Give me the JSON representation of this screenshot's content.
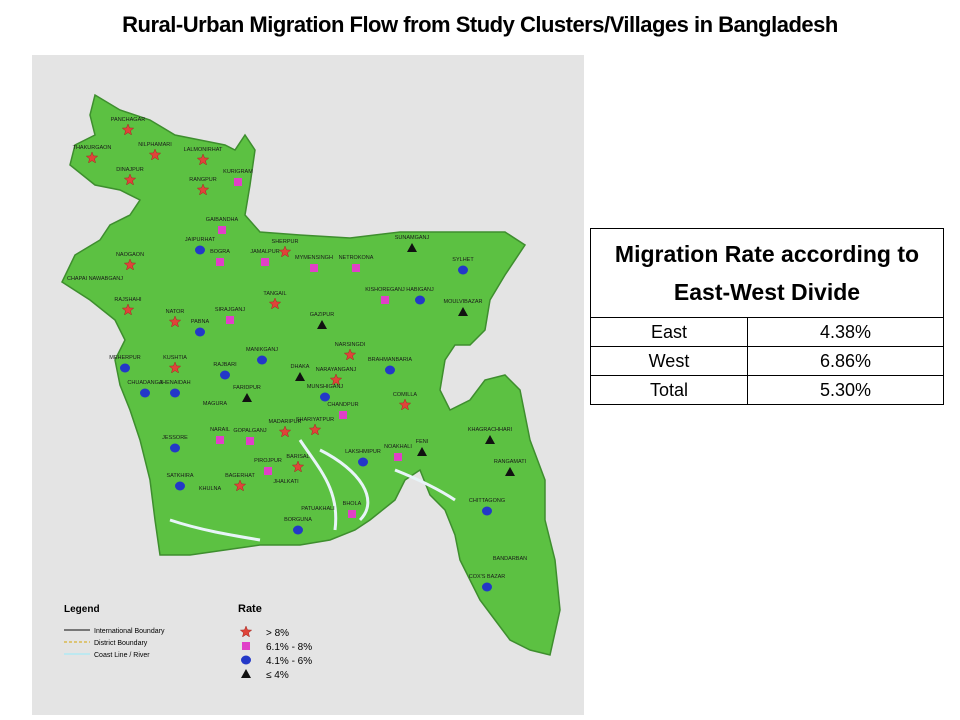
{
  "title": "Rural-Urban Migration Flow from Study Clusters/Villages in Bangladesh",
  "map": {
    "legend": {
      "title": "Legend",
      "items": [
        "International Boundary",
        "District Boundary",
        "Coast Line / River"
      ]
    },
    "rate_legend": {
      "title": "Rate",
      "classes": [
        "> 8%",
        "6.1% - 8%",
        "4.1% - 6%",
        "≤ 4%"
      ]
    },
    "districts": [
      {
        "name": "PANCHAGAR",
        "rate": "> 8%"
      },
      {
        "name": "THAKURGAON",
        "rate": "> 8%"
      },
      {
        "name": "NILPHAMARI",
        "rate": "> 8%"
      },
      {
        "name": "LALMONIRHAT",
        "rate": "> 8%"
      },
      {
        "name": "DINAJPUR",
        "rate": "> 8%"
      },
      {
        "name": "RANGPUR",
        "rate": "> 8%"
      },
      {
        "name": "KURIGRAM",
        "rate": "6.1% - 8%"
      },
      {
        "name": "GAIBANDHA",
        "rate": "6.1% - 8%"
      },
      {
        "name": "JAIPURHAT",
        "rate": "4.1% - 6%"
      },
      {
        "name": "NAOGAON",
        "rate": "> 8%"
      },
      {
        "name": "BOGRA",
        "rate": "6.1% - 8%"
      },
      {
        "name": "CHAPAI NAWABGANJ"
      },
      {
        "name": "RAJSHAHI",
        "rate": "> 8%"
      },
      {
        "name": "NATOR",
        "rate": "> 8%"
      },
      {
        "name": "SIRAJGANJ",
        "rate": "6.1% - 8%"
      },
      {
        "name": "PABNA",
        "rate": "4.1% - 6%"
      },
      {
        "name": "SHERPUR",
        "rate": "> 8%"
      },
      {
        "name": "JAMALPUR",
        "rate": "6.1% - 8%"
      },
      {
        "name": "NETROKONA",
        "rate": "6.1% - 8%"
      },
      {
        "name": "MYMENSINGH",
        "rate": "6.1% - 8%"
      },
      {
        "name": "TANGAIL",
        "rate": "> 8%"
      },
      {
        "name": "SUNAMGANJ",
        "rate": "≤ 4%"
      },
      {
        "name": "SYLHET",
        "rate": "4.1% - 6%"
      },
      {
        "name": "KISHOREGANJ",
        "rate": "6.1% - 8%"
      },
      {
        "name": "HABIGANJ",
        "rate": "4.1% - 6%"
      },
      {
        "name": "MOULVIBAZAR",
        "rate": "≤ 4%"
      },
      {
        "name": "GAZIPUR",
        "rate": "≤ 4%"
      },
      {
        "name": "NARSINGDI",
        "rate": "> 8%"
      },
      {
        "name": "BRAHMANBARIA",
        "rate": "4.1% - 6%"
      },
      {
        "name": "KUSHTIA",
        "rate": "> 8%"
      },
      {
        "name": "MEHERPUR",
        "rate": "4.1% - 6%"
      },
      {
        "name": "CHUADANGA",
        "rate": "4.1% - 6%"
      },
      {
        "name": "JHENAIDAH",
        "rate": "4.1% - 6%"
      },
      {
        "name": "RAJBARI",
        "rate": "4.1% - 6%"
      },
      {
        "name": "MANIKGANJ",
        "rate": "4.1% - 6%"
      },
      {
        "name": "DHAKA",
        "rate": "≤ 4%"
      },
      {
        "name": "NARAYANGANJ",
        "rate": "> 8%"
      },
      {
        "name": "MAGURA"
      },
      {
        "name": "FARIDPUR",
        "rate": "≤ 4%"
      },
      {
        "name": "MUNSHIGANJ",
        "rate": "4.1% - 6%"
      },
      {
        "name": "COMILLA",
        "rate": "> 8%"
      },
      {
        "name": "SHARIYATPUR",
        "rate": "> 8%"
      },
      {
        "name": "CHANDPUR",
        "rate": "6.1% - 8%"
      },
      {
        "name": "MADARIPUR",
        "rate": "> 8%"
      },
      {
        "name": "JESSORE",
        "rate": "4.1% - 6%"
      },
      {
        "name": "NARAIL",
        "rate": "6.1% - 8%"
      },
      {
        "name": "GOPALGANJ",
        "rate": "6.1% - 8%"
      },
      {
        "name": "LAKSHMIPUR",
        "rate": "4.1% - 6%"
      },
      {
        "name": "NOAKHALI",
        "rate": "6.1% - 8%"
      },
      {
        "name": "FENI",
        "rate": "≤ 4%"
      },
      {
        "name": "KHAGRACHHARI",
        "rate": "≤ 4%"
      },
      {
        "name": "RANGAMATI",
        "rate": "≤ 4%"
      },
      {
        "name": "SATKHIRA",
        "rate": "4.1% - 6%"
      },
      {
        "name": "KHULNA"
      },
      {
        "name": "BAGERHAT",
        "rate": "> 8%"
      },
      {
        "name": "PIROJPUR",
        "rate": "6.1% - 8%"
      },
      {
        "name": "BARISAL",
        "rate": "> 8%"
      },
      {
        "name": "JHALKATI"
      },
      {
        "name": "BHOLA",
        "rate": "6.1% - 8%"
      },
      {
        "name": "PATUAKHALI"
      },
      {
        "name": "BORGUNA",
        "rate": "4.1% - 6%"
      },
      {
        "name": "CHITTAGONG",
        "rate": "4.1% - 6%"
      },
      {
        "name": "BANDARBAN"
      },
      {
        "name": "COX'S BAZAR",
        "rate": "4.1% - 6%"
      }
    ]
  },
  "table": {
    "title": "Migration Rate according to East-West Divide",
    "rows": [
      [
        "East",
        "4.38%"
      ],
      [
        "West",
        "6.86%"
      ],
      [
        "Total",
        "5.30%"
      ]
    ]
  }
}
